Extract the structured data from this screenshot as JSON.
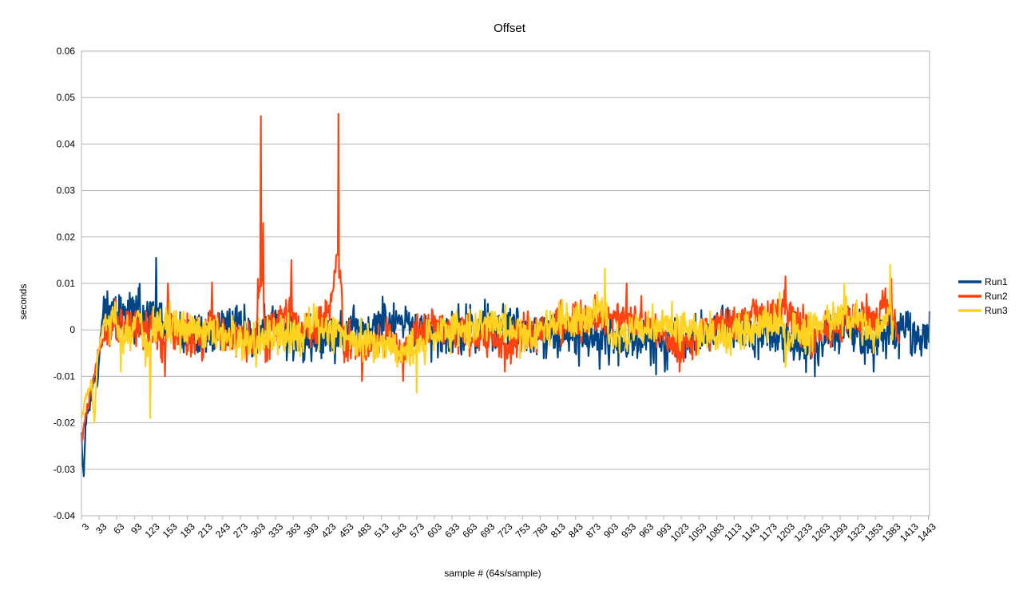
{
  "chart_data": {
    "type": "line",
    "title": "Offset",
    "xlabel": "sample # (64s/sample)",
    "ylabel": "seconds",
    "ylim": [
      -0.04,
      0.06
    ],
    "y_ticks": [
      "0.06",
      "0.05",
      "0.04",
      "0.03",
      "0.02",
      "0.01",
      "0",
      "-0.01",
      "-0.02",
      "-0.03",
      "-0.04"
    ],
    "x_range": [
      3,
      1445
    ],
    "x_ticks": [
      3,
      33,
      63,
      93,
      123,
      153,
      183,
      213,
      243,
      273,
      303,
      333,
      363,
      393,
      423,
      453,
      483,
      513,
      543,
      573,
      603,
      633,
      663,
      693,
      723,
      753,
      783,
      813,
      843,
      873,
      903,
      933,
      963,
      993,
      1023,
      1053,
      1083,
      1113,
      1143,
      1173,
      1203,
      1233,
      1263,
      1293,
      1323,
      1353,
      1383,
      1413,
      1443
    ],
    "grid": true,
    "legend_position": "right",
    "series": [
      {
        "name": "Run1",
        "color": "#004586",
        "end_x": 1445,
        "points": [
          [
            3,
            -0.022
          ],
          [
            6,
            -0.03
          ],
          [
            7,
            -0.0315
          ],
          [
            10,
            -0.02
          ],
          [
            15,
            -0.016
          ],
          [
            20,
            -0.014
          ],
          [
            25,
            -0.01
          ],
          [
            30,
            -0.012
          ],
          [
            35,
            -0.002
          ],
          [
            40,
            0.004
          ],
          [
            45,
            0.005
          ],
          [
            55,
            0.006
          ],
          [
            70,
            0.007
          ],
          [
            85,
            0.008
          ],
          [
            100,
            0.009
          ],
          [
            120,
            0.006
          ],
          [
            130,
            0.0155
          ],
          [
            135,
            0.0
          ],
          [
            150,
            0.002
          ],
          [
            180,
            -0.003
          ],
          [
            210,
            -0.004
          ],
          [
            260,
            0.004
          ],
          [
            300,
            -0.005
          ],
          [
            320,
            0.003
          ],
          [
            380,
            -0.007
          ],
          [
            450,
            -0.003
          ],
          [
            520,
            0.004
          ],
          [
            600,
            -0.003
          ],
          [
            700,
            0.003
          ],
          [
            800,
            -0.002
          ],
          [
            995,
            -0.009
          ],
          [
            1030,
            -0.006
          ],
          [
            1100,
            0.003
          ],
          [
            1200,
            -0.005
          ],
          [
            1250,
            -0.01
          ],
          [
            1300,
            0.004
          ],
          [
            1350,
            -0.009
          ],
          [
            1380,
            -0.001
          ],
          [
            1400,
            0.003
          ],
          [
            1420,
            -0.005
          ],
          [
            1440,
            -0.004
          ],
          [
            1445,
            0.004
          ]
        ],
        "noise_amp": 0.0035
      },
      {
        "name": "Run2",
        "color": "#ff420e",
        "end_x": 1393,
        "points": [
          [
            3,
            -0.024
          ],
          [
            8,
            -0.02
          ],
          [
            20,
            -0.013
          ],
          [
            30,
            -0.006
          ],
          [
            40,
            -0.002
          ],
          [
            60,
            0.006
          ],
          [
            80,
            0.004
          ],
          [
            100,
            0.003
          ],
          [
            140,
            -0.007
          ],
          [
            145,
            -0.01
          ],
          [
            150,
            0.01
          ],
          [
            160,
            -0.004
          ],
          [
            180,
            -0.002
          ],
          [
            210,
            -0.006
          ],
          [
            225,
            0.0102
          ],
          [
            240,
            -0.003
          ],
          [
            300,
            -0.005
          ],
          [
            303,
            0.011
          ],
          [
            308,
            0.046
          ],
          [
            312,
            0.023
          ],
          [
            316,
            -0.007
          ],
          [
            360,
            0.015
          ],
          [
            380,
            -0.004
          ],
          [
            420,
            0.006
          ],
          [
            440,
            0.0465
          ],
          [
            450,
            -0.007
          ],
          [
            480,
            -0.011
          ],
          [
            520,
            -0.004
          ],
          [
            550,
            -0.011
          ],
          [
            600,
            0.004
          ],
          [
            723,
            -0.009
          ],
          [
            800,
            0.003
          ],
          [
            930,
            0.01
          ],
          [
            1020,
            -0.009
          ],
          [
            1100,
            0.003
          ],
          [
            1200,
            0.0115
          ],
          [
            1250,
            -0.005
          ],
          [
            1300,
            0.008
          ],
          [
            1370,
            0.009
          ],
          [
            1380,
            0.011
          ],
          [
            1393,
            -0.003
          ]
        ],
        "noise_amp": 0.003
      },
      {
        "name": "Run3",
        "color": "#ffd320",
        "end_x": 1383,
        "points": [
          [
            3,
            -0.019
          ],
          [
            10,
            -0.015
          ],
          [
            20,
            -0.011
          ],
          [
            25,
            -0.02
          ],
          [
            30,
            -0.006
          ],
          [
            40,
            0.001
          ],
          [
            50,
            0.003
          ],
          [
            60,
            0.006
          ],
          [
            70,
            -0.009
          ],
          [
            100,
            0.004
          ],
          [
            120,
            -0.019
          ],
          [
            125,
            0.005
          ],
          [
            150,
            0.003
          ],
          [
            200,
            -0.002
          ],
          [
            300,
            -0.008
          ],
          [
            400,
            0.002
          ],
          [
            460,
            -0.004
          ],
          [
            500,
            -0.007
          ],
          [
            573,
            -0.0135
          ],
          [
            600,
            -0.002
          ],
          [
            700,
            0.004
          ],
          [
            760,
            -0.004
          ],
          [
            800,
            0.004
          ],
          [
            893,
            0.0132
          ],
          [
            900,
            -0.003
          ],
          [
            1000,
            0.003
          ],
          [
            1100,
            -0.005
          ],
          [
            1190,
            0.008
          ],
          [
            1200,
            -0.008
          ],
          [
            1300,
            0.01
          ],
          [
            1350,
            -0.005
          ],
          [
            1378,
            0.014
          ],
          [
            1383,
            0.002
          ]
        ],
        "noise_amp": 0.003
      }
    ]
  }
}
